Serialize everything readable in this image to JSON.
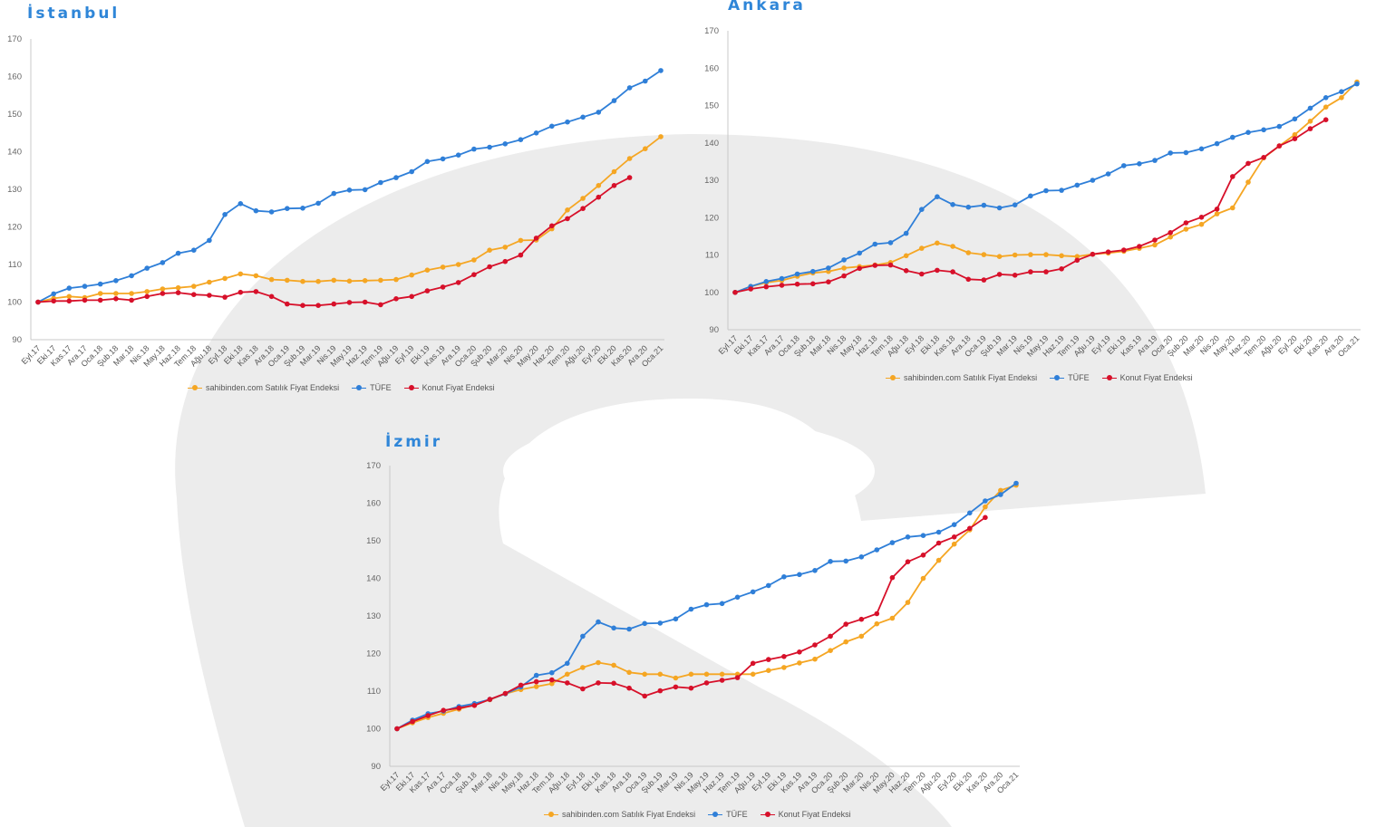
{
  "colors": {
    "series_orange": "#f5a623",
    "series_blue": "#2f7fd8",
    "series_red": "#d7102a",
    "watermark": "#ececec"
  },
  "chart_data": [
    {
      "type": "line",
      "title": "İstanbul",
      "ylim": [
        90,
        170
      ],
      "yticks": [
        90,
        100,
        110,
        120,
        130,
        140,
        150,
        160,
        170
      ],
      "grid": false,
      "legend_position": "bottom-center",
      "categories": [
        "Eyl.17",
        "Eki.17",
        "Kas.17",
        "Ara.17",
        "Oca.18",
        "Şub.18",
        "Mar.18",
        "Nis.18",
        "May.18",
        "Haz.18",
        "Tem.18",
        "Ağu.18",
        "Eyl.18",
        "Eki.18",
        "Kas.18",
        "Ara.18",
        "Oca.19",
        "Şub.19",
        "Mar.19",
        "Nis.19",
        "May.19",
        "Haz.19",
        "Tem.19",
        "Ağu.19",
        "Eyl.19",
        "Eki.19",
        "Kas.19",
        "Ara.19",
        "Oca.20",
        "Şub.20",
        "Mar.20",
        "Nis.20",
        "May.20",
        "Haz.20",
        "Tem.20",
        "Ağu.20",
        "Eyl.20",
        "Eki.20",
        "Kas.20",
        "Ara.20",
        "Oca.21"
      ],
      "series": [
        {
          "name": "sahibinden.com Satılık Fiyat Endeksi",
          "color": "#f5a623",
          "values": [
            100,
            101,
            101.5,
            101.2,
            102.3,
            102.3,
            102.3,
            102.8,
            103.5,
            103.8,
            104.2,
            105.3,
            106.3,
            107.5,
            107,
            106,
            105.8,
            105.5,
            105.5,
            105.8,
            105.6,
            105.7,
            105.8,
            106,
            107.2,
            108.5,
            109.3,
            110,
            111.2,
            113.8,
            114.6,
            116.4,
            116.5,
            119.5,
            124.5,
            127.6,
            131,
            134.7,
            138.2,
            140.8,
            144
          ]
        },
        {
          "name": "TÜFE",
          "color": "#2f7fd8",
          "values": [
            100,
            102.2,
            103.7,
            104.2,
            104.8,
            105.7,
            107,
            109,
            110.5,
            113,
            113.8,
            116.4,
            123.3,
            126.2,
            124.3,
            124,
            124.9,
            125,
            126.3,
            128.9,
            129.8,
            129.9,
            131.8,
            133.1,
            134.7,
            137.4,
            138.1,
            139.1,
            140.7,
            141.2,
            142.1,
            143.2,
            145,
            146.8,
            147.9,
            149.2,
            150.5,
            153.6,
            157,
            158.8,
            161.6
          ]
        },
        {
          "name": "Konut Fiyat Endeksi",
          "color": "#d7102a",
          "values": [
            100,
            100.3,
            100.3,
            100.5,
            100.5,
            100.9,
            100.5,
            101.5,
            102.3,
            102.5,
            102,
            101.8,
            101.3,
            102.6,
            102.8,
            101.5,
            99.5,
            99.1,
            99.1,
            99.5,
            99.9,
            100,
            99.3,
            100.9,
            101.5,
            103,
            104,
            105.2,
            107.3,
            109.4,
            110.8,
            112.5,
            117,
            120.3,
            122.2,
            124.9,
            127.9,
            131,
            133.1,
            null,
            null
          ]
        }
      ]
    },
    {
      "type": "line",
      "title": "Ankara",
      "ylim": [
        90,
        170
      ],
      "yticks": [
        90,
        100,
        110,
        120,
        130,
        140,
        150,
        160,
        170
      ],
      "grid": false,
      "legend_position": "bottom-center",
      "categories": [
        "Eyl.17",
        "Eki.17",
        "Kas.17",
        "Ara.17",
        "Oca.18",
        "Şub.18",
        "Mar.18",
        "Nis.18",
        "May.18",
        "Haz.18",
        "Tem.18",
        "Ağu.18",
        "Eyl.18",
        "Eki.18",
        "Kas.18",
        "Ara.18",
        "Oca.19",
        "Şub.19",
        "Mar.19",
        "Nis.19",
        "May.19",
        "Haz.19",
        "Tem.19",
        "Ağu.19",
        "Eyl.19",
        "Eki.19",
        "Kas.19",
        "Ara.19",
        "Oca.20",
        "Şub.20",
        "Mar.20",
        "Nis.20",
        "May.20",
        "Haz.20",
        "Tem.20",
        "Ağu.20",
        "Eyl.20",
        "Eki.20",
        "Kas.20",
        "Ara.20",
        "Oca.21"
      ],
      "series": [
        {
          "name": "sahibinden.com Satılık Fiyat Endeksi",
          "color": "#f5a623",
          "values": [
            100,
            101.6,
            102.6,
            103.2,
            104.3,
            105.2,
            105.6,
            106.5,
            106.9,
            107.3,
            108,
            109.8,
            111.8,
            113.2,
            112.3,
            110.6,
            110.1,
            109.6,
            110,
            110.1,
            110.1,
            109.8,
            109.6,
            110.2,
            110.5,
            111,
            111.8,
            112.7,
            114.8,
            116.9,
            118.2,
            121,
            122.6,
            129.5,
            136,
            139.2,
            142.2,
            145.8,
            149.6,
            152.1,
            156.3
          ]
        },
        {
          "name": "TÜFE",
          "color": "#2f7fd8",
          "values": [
            100,
            101.6,
            102.9,
            103.7,
            104.9,
            105.6,
            106.5,
            108.7,
            110.5,
            112.9,
            113.3,
            115.8,
            122.2,
            125.6,
            123.5,
            122.8,
            123.3,
            122.6,
            123.4,
            125.8,
            127.2,
            127.3,
            128.7,
            130,
            131.7,
            133.9,
            134.4,
            135.3,
            137.3,
            137.4,
            138.4,
            139.8,
            141.5,
            142.8,
            143.5,
            144.4,
            146.4,
            149.3,
            152.1,
            153.7,
            155.8
          ]
        },
        {
          "name": "Konut Fiyat Endeksi",
          "color": "#d7102a",
          "values": [
            100,
            100.9,
            101.5,
            101.9,
            102.2,
            102.3,
            102.8,
            104.4,
            106.4,
            107.2,
            107.3,
            105.8,
            104.9,
            105.9,
            105.5,
            103.5,
            103.3,
            104.8,
            104.6,
            105.5,
            105.5,
            106.3,
            108.6,
            110.2,
            110.8,
            111.3,
            112.3,
            114,
            116,
            118.6,
            120.1,
            122.3,
            131,
            134.5,
            136.1,
            139.2,
            141.1,
            143.8,
            146.2,
            null,
            null
          ]
        }
      ]
    },
    {
      "type": "line",
      "title": "İzmir",
      "ylim": [
        90,
        170
      ],
      "yticks": [
        90,
        100,
        110,
        120,
        130,
        140,
        150,
        160,
        170
      ],
      "grid": false,
      "legend_position": "bottom-center",
      "categories": [
        "Eyl.17",
        "Eki.17",
        "Kas.17",
        "Ara.17",
        "Oca.18",
        "Şub.18",
        "Mar.18",
        "Nis.18",
        "May.18",
        "Haz.18",
        "Tem.18",
        "Ağu.18",
        "Eyl.18",
        "Eki.18",
        "Kas.18",
        "Ara.18",
        "Oca.19",
        "Şub.19",
        "Mar.19",
        "Nis.19",
        "May.19",
        "Haz.19",
        "Tem.19",
        "Ağu.19",
        "Eyl.19",
        "Eki.19",
        "Kas.19",
        "Ara.19",
        "Oca.20",
        "Şub.20",
        "Mar.20",
        "Nis.20",
        "May.20",
        "Haz.20",
        "Tem.20",
        "Ağu.20",
        "Eyl.20",
        "Eki.20",
        "Kas.20",
        "Ara.20",
        "Oca.21"
      ],
      "series": [
        {
          "name": "sahibinden.com Satılık Fiyat Endeksi",
          "color": "#f5a623",
          "values": [
            100,
            101.6,
            103,
            104.1,
            105.2,
            106.4,
            107.7,
            109.3,
            110.4,
            111.2,
            112,
            114.5,
            116.3,
            117.6,
            116.9,
            115,
            114.5,
            114.5,
            113.5,
            114.5,
            114.5,
            114.5,
            114.5,
            114.5,
            115.5,
            116.3,
            117.5,
            118.5,
            120.8,
            123.1,
            124.6,
            127.9,
            129.4,
            133.6,
            140,
            144.8,
            149.1,
            152.9,
            159,
            163.4,
            164.8
          ]
        },
        {
          "name": "TÜFE",
          "color": "#2f7fd8",
          "values": [
            100,
            102.3,
            104,
            104.7,
            105.9,
            106.7,
            107.8,
            109.3,
            111.1,
            114.2,
            114.9,
            117.4,
            124.6,
            128.4,
            126.8,
            126.5,
            128,
            128.1,
            129.2,
            131.8,
            133,
            133.3,
            135,
            136.4,
            138.1,
            140.4,
            141,
            142.1,
            144.5,
            144.6,
            145.7,
            147.6,
            149.5,
            151,
            151.4,
            152.3,
            154.3,
            157.4,
            160.6,
            162.3,
            165.3
          ]
        },
        {
          "name": "Konut Fiyat Endeksi",
          "color": "#d7102a",
          "values": [
            100,
            101.9,
            103.5,
            104.9,
            105.5,
            106.2,
            107.8,
            109.4,
            111.6,
            112.5,
            113,
            112.2,
            110.6,
            112.2,
            112.1,
            110.8,
            108.7,
            110.1,
            111.1,
            110.8,
            112.2,
            112.9,
            113.6,
            117.4,
            118.4,
            119.2,
            120.4,
            122.3,
            124.6,
            127.8,
            129.1,
            130.6,
            140.2,
            144.4,
            146.2,
            149.4,
            151,
            153.3,
            156.2,
            null,
            null
          ]
        }
      ]
    }
  ]
}
